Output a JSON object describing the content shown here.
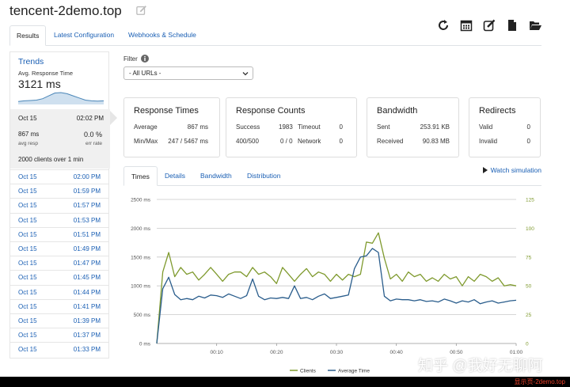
{
  "header": {
    "title": "tencent-2demo.top"
  },
  "toolbar_icons": [
    "refresh-icon",
    "calendar-icon",
    "edit-icon",
    "file-icon",
    "folder-open-icon"
  ],
  "tabs": [
    {
      "label": "Results",
      "active": true
    },
    {
      "label": "Latest Configuration",
      "active": false
    },
    {
      "label": "Webhooks & Schedule",
      "active": false
    }
  ],
  "trends": {
    "title": "Trends",
    "avg_label": "Avg. Response Time",
    "avg_value": "3121 ms",
    "spark": [
      0.15,
      0.2,
      0.22,
      0.25,
      0.35,
      0.55,
      0.75,
      0.78,
      0.7,
      0.55,
      0.4,
      0.25,
      0.2,
      0.18,
      0.2
    ]
  },
  "selected": {
    "date": "Oct 15",
    "time": "02:02 PM",
    "ms": "867 ms",
    "avg_resp": "avg resp",
    "pct": "0.0 %",
    "err_rate": "err rate",
    "clients": "2000 clients over 1 min"
  },
  "history": [
    {
      "date": "Oct 15",
      "time": "02:00 PM"
    },
    {
      "date": "Oct 15",
      "time": "01:59 PM"
    },
    {
      "date": "Oct 15",
      "time": "01:57 PM"
    },
    {
      "date": "Oct 15",
      "time": "01:53 PM"
    },
    {
      "date": "Oct 15",
      "time": "01:51 PM"
    },
    {
      "date": "Oct 15",
      "time": "01:49 PM"
    },
    {
      "date": "Oct 15",
      "time": "01:47 PM"
    },
    {
      "date": "Oct 15",
      "time": "01:45 PM"
    },
    {
      "date": "Oct 15",
      "time": "01:44 PM"
    },
    {
      "date": "Oct 15",
      "time": "01:41 PM"
    },
    {
      "date": "Oct 15",
      "time": "01:39 PM"
    },
    {
      "date": "Oct 15",
      "time": "01:37 PM"
    },
    {
      "date": "Oct 15",
      "time": "01:33 PM"
    }
  ],
  "filter": {
    "label": "Filter",
    "selected": "- All URLs -"
  },
  "cards": {
    "response_times": {
      "title": "Response Times",
      "average_label": "Average",
      "average": "867 ms",
      "minmax_label": "Min/Max",
      "minmax": "247 / 5467 ms"
    },
    "response_counts": {
      "title": "Response Counts",
      "success_label": "Success",
      "success": "1983",
      "timeout_label": "Timeout",
      "timeout": "0",
      "status_label": "400/500",
      "status": "0 / 0",
      "network_label": "Network",
      "network": "0"
    },
    "bandwidth": {
      "title": "Bandwidth",
      "sent_label": "Sent",
      "sent": "253.91 KB",
      "received_label": "Received",
      "received": "90.83 MB"
    },
    "redirects": {
      "title": "Redirects",
      "valid_label": "Valid",
      "valid": "0",
      "invalid_label": "Invalid",
      "invalid": "0"
    }
  },
  "chart_tabs": [
    {
      "label": "Times",
      "active": true
    },
    {
      "label": "Details",
      "active": false
    },
    {
      "label": "Bandwidth",
      "active": false
    },
    {
      "label": "Distribution",
      "active": false
    }
  ],
  "watch_simulation": "Watch simulation",
  "watermark": "知乎 @我好无聊阿",
  "footer_tag": "显示页-2demo.top",
  "chart_data": {
    "type": "line",
    "x": [
      0,
      1,
      2,
      3,
      4,
      5,
      6,
      7,
      8,
      9,
      10,
      11,
      12,
      13,
      14,
      15,
      16,
      17,
      18,
      19,
      20,
      21,
      22,
      23,
      24,
      25,
      26,
      27,
      28,
      29,
      30,
      31,
      32,
      33,
      34,
      35,
      36,
      37,
      38,
      39,
      40,
      41,
      42,
      43,
      44,
      45,
      46,
      47,
      48,
      49,
      50,
      51,
      52,
      53,
      54,
      55,
      56,
      57,
      58,
      59,
      60
    ],
    "x_ticks": [
      10,
      20,
      30,
      40,
      50,
      60
    ],
    "x_tick_labels": [
      "00:10",
      "00:20",
      "00:30",
      "00:40",
      "00:50",
      "01:00"
    ],
    "y_left_ticks": [
      "0 ms",
      "500 ms",
      "1000 ms",
      "1500 ms",
      "2000 ms",
      "2500 ms"
    ],
    "y_left_range": [
      0,
      2500
    ],
    "y_right_ticks": [
      "0",
      "25",
      "50",
      "75",
      "100",
      "125"
    ],
    "y_right_range": [
      0,
      125
    ],
    "series": [
      {
        "name": "Clients",
        "color": "#7f9a2e",
        "axis": "right",
        "values": [
          0,
          62,
          79,
          58,
          66,
          60,
          62,
          55,
          60,
          66,
          60,
          54,
          60,
          62,
          62,
          58,
          66,
          60,
          62,
          58,
          52,
          66,
          60,
          54,
          60,
          65,
          58,
          62,
          60,
          54,
          60,
          55,
          60,
          58,
          60,
          88,
          87,
          96,
          74,
          56,
          60,
          54,
          62,
          58,
          60,
          54,
          57,
          54,
          60,
          56,
          58,
          50,
          58,
          54,
          60,
          58,
          54,
          57,
          50,
          51,
          50
        ]
      },
      {
        "name": "Average Time",
        "color": "#2a5d8c",
        "axis": "left",
        "values": [
          0,
          950,
          1150,
          850,
          760,
          780,
          760,
          820,
          790,
          840,
          830,
          800,
          860,
          820,
          780,
          830,
          1120,
          820,
          760,
          790,
          780,
          800,
          780,
          1000,
          780,
          800,
          760,
          820,
          860,
          780,
          800,
          820,
          840,
          1300,
          1500,
          1520,
          1650,
          1580,
          820,
          740,
          770,
          760,
          760,
          740,
          760,
          730,
          740,
          720,
          770,
          740,
          700,
          740,
          720,
          760,
          690,
          720,
          740,
          700,
          720,
          740,
          750
        ]
      }
    ]
  }
}
